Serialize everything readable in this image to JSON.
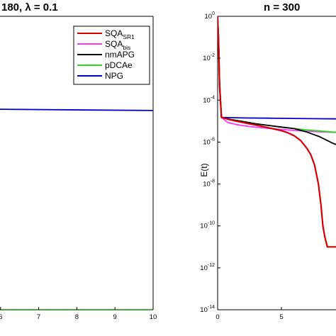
{
  "chart_data": [
    {
      "type": "line",
      "title": "180, λ = 0.1",
      "xlabel": "",
      "ylabel": "",
      "xlim": [
        5.85,
        10
      ],
      "x_ticks": [
        "6",
        "7",
        "8",
        "9",
        "10"
      ],
      "x_tick_values": [
        6,
        7,
        8,
        9,
        10
      ],
      "y_log": true,
      "ylim": [
        1e-14,
        1
      ],
      "grid": false,
      "legend_placement": "top-right",
      "series": [
        {
          "name": "SQA_SR1",
          "color": "#d40000",
          "x": [
            5.85,
            10
          ],
          "y": [
            1e-14,
            1e-14
          ]
        },
        {
          "name": "SQA_bis",
          "color": "#ff33ff",
          "x": [
            5.85,
            10
          ],
          "y": [
            1e-14,
            1e-14
          ]
        },
        {
          "name": "nmAPG",
          "color": "#000000",
          "x": [
            5.85,
            10
          ],
          "y": [
            1e-14,
            1e-14
          ]
        },
        {
          "name": "pDCAe",
          "color": "#22dd22",
          "x": [
            5.85,
            10
          ],
          "y": [
            1e-14,
            1e-14
          ]
        },
        {
          "name": "NPG",
          "color": "#0000cc",
          "x": [
            5.85,
            10
          ],
          "y": [
            3.7e-05,
            3.2e-05
          ]
        }
      ]
    },
    {
      "type": "line",
      "title": "n = 300",
      "xlabel": "",
      "ylabel": "E(t)",
      "xlim": [
        0,
        11
      ],
      "x_ticks": [
        "0",
        "5"
      ],
      "x_tick_values": [
        0,
        5
      ],
      "y_log": true,
      "ylim": [
        1e-14,
        1
      ],
      "y_ticks": [
        {
          "base": "10",
          "exp": "0",
          "value": 1
        },
        {
          "base": "10",
          "exp": "-2",
          "value": 0.01
        },
        {
          "base": "10",
          "exp": "-4",
          "value": 0.0001
        },
        {
          "base": "10",
          "exp": "-6",
          "value": 1e-06
        },
        {
          "base": "10",
          "exp": "-8",
          "value": 1e-08
        },
        {
          "base": "10",
          "exp": "-10",
          "value": 1e-10
        },
        {
          "base": "10",
          "exp": "-12",
          "value": 1e-12
        },
        {
          "base": "10",
          "exp": "-14",
          "value": 1e-14
        }
      ],
      "grid": false,
      "series": [
        {
          "name": "NPG",
          "color": "#0000cc",
          "x": [
            0,
            0.08,
            0.15,
            0.3,
            2,
            4,
            6,
            8,
            11
          ],
          "y": [
            1,
            0.1,
            0.001,
            1.5e-05,
            1.42e-05,
            1.38e-05,
            1.34e-05,
            1.3e-05,
            1.26e-05
          ]
        },
        {
          "name": "SQA_bis",
          "color": "#ff33ff",
          "x": [
            0,
            0.08,
            0.15,
            0.3,
            0.8,
            1.5,
            2.5,
            4,
            5.5,
            7,
            8.5,
            9.5,
            11
          ],
          "y": [
            0.8,
            0.05,
            0.0005,
            1.5e-05,
            8.5e-06,
            6.8e-06,
            5.5e-06,
            4.5e-06,
            3.8e-06,
            3.3e-06,
            3e-06,
            2.9e-06,
            2.8e-06
          ]
        },
        {
          "name": "pDCAe",
          "color": "#22dd22",
          "x": [
            0,
            0.08,
            0.15,
            0.3,
            1,
            2,
            3,
            4,
            5,
            6,
            7,
            8,
            9,
            10,
            11
          ],
          "y": [
            0.8,
            0.05,
            0.0005,
            1.5e-05,
            1.2e-05,
            9.5e-06,
            7.5e-06,
            6.2e-06,
            5.2e-06,
            4.4e-06,
            3.8e-06,
            3.4e-06,
            3e-06,
            2.9e-06,
            2.8e-06
          ]
        },
        {
          "name": "nmAPG",
          "color": "#000000",
          "x": [
            0,
            0.08,
            0.15,
            0.3,
            1,
            2,
            3,
            4,
            5,
            6,
            7,
            8,
            9,
            10,
            11
          ],
          "y": [
            0.8,
            0.05,
            0.0005,
            1.5e-05,
            1.2e-05,
            9.5e-06,
            7.5e-06,
            6.2e-06,
            5.2e-06,
            4.4e-06,
            3e-06,
            1.8e-06,
            9e-07,
            5e-07,
            3e-07
          ]
        },
        {
          "name": "SQA_SR1",
          "color": "#d40000",
          "x": [
            0,
            0.08,
            0.15,
            0.3,
            1,
            2,
            3,
            4,
            5,
            5.5,
            6,
            6.5,
            7,
            7.3,
            7.6,
            7.9,
            8.1,
            8.25,
            8.4,
            8.6,
            11
          ],
          "y": [
            1,
            0.05,
            0.0005,
            1.5e-05,
            1.15e-05,
            8.5e-06,
            6.5e-06,
            4.8e-06,
            3.5e-06,
            2.8e-06,
            2e-06,
            1.2e-06,
            5e-07,
            2.5e-07,
            8e-08,
            1e-08,
            1e-09,
            1e-10,
            3e-11,
            1e-11,
            1e-11
          ]
        }
      ]
    }
  ],
  "legend": {
    "entries": [
      {
        "text": "SQA",
        "sub": "SR1",
        "color": "#d40000"
      },
      {
        "text": "SQA",
        "sub": "bis",
        "color": "#ff33ff"
      },
      {
        "text": "nmAPG",
        "sub": "",
        "color": "#000000"
      },
      {
        "text": "pDCAe",
        "sub": "",
        "color": "#22dd22"
      },
      {
        "text": "NPG",
        "sub": "",
        "color": "#0000cc"
      }
    ]
  }
}
